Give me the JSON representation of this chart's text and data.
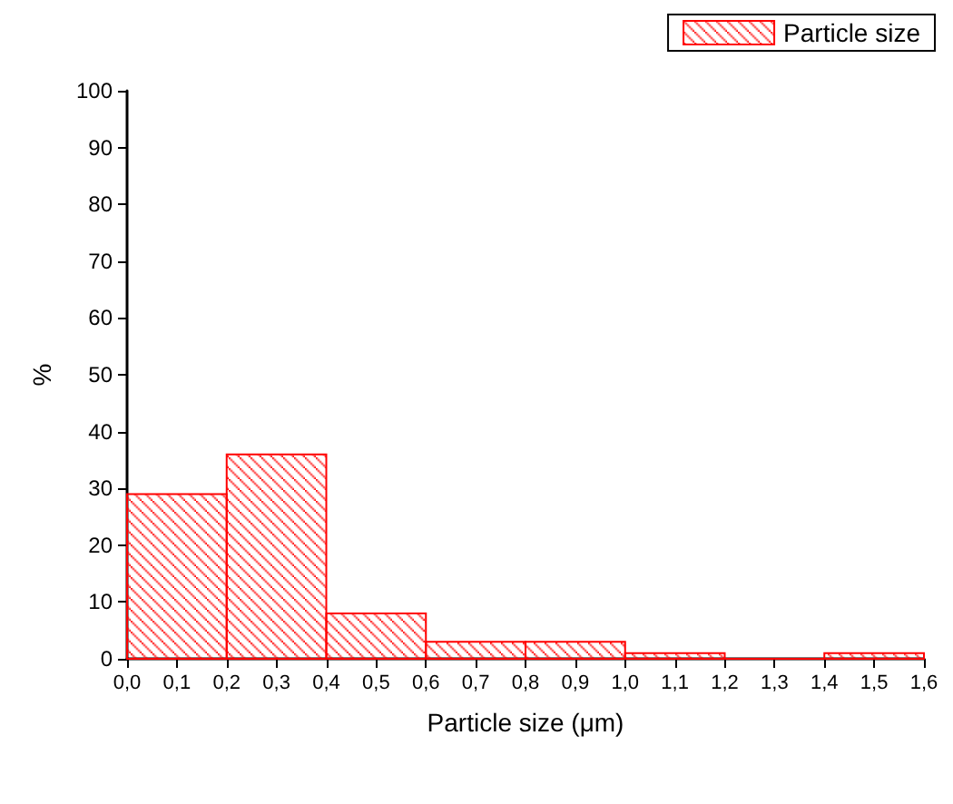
{
  "chart_data": {
    "type": "histogram",
    "xlabel": "Particle size (μm)",
    "ylabel": "%",
    "bins": [
      0,
      0.2,
      0.4,
      0.6,
      0.8,
      1.0,
      1.2,
      1.4,
      1.6
    ],
    "series": [
      {
        "name": "Particle size",
        "color": "#ff0000",
        "values": [
          29,
          36,
          8,
          3,
          3,
          1,
          0,
          1
        ]
      }
    ],
    "xlim": [
      0,
      1.6
    ],
    "xticks": [
      {
        "value": 0,
        "label": "0,0"
      },
      {
        "value": 0.1,
        "label": "0,1"
      },
      {
        "value": 0.2,
        "label": "0,2"
      },
      {
        "value": 0.3,
        "label": "0,3"
      },
      {
        "value": 0.4,
        "label": "0,4"
      },
      {
        "value": 0.5,
        "label": "0,5"
      },
      {
        "value": 0.6,
        "label": "0,6"
      },
      {
        "value": 0.7,
        "label": "0,7"
      },
      {
        "value": 0.8,
        "label": "0,8"
      },
      {
        "value": 0.9,
        "label": "0,9"
      },
      {
        "value": 1.0,
        "label": "1,0"
      },
      {
        "value": 1.1,
        "label": "1,1"
      },
      {
        "value": 1.2,
        "label": "1,2"
      },
      {
        "value": 1.3,
        "label": "1,3"
      },
      {
        "value": 1.4,
        "label": "1,4"
      },
      {
        "value": 1.5,
        "label": "1,5"
      },
      {
        "value": 1.6,
        "label": "1,6"
      }
    ],
    "ylim": [
      0,
      100
    ],
    "yticks": [
      0,
      10,
      20,
      30,
      40,
      50,
      60,
      70,
      80,
      90,
      100
    ],
    "grid": false,
    "legend": "top right"
  }
}
